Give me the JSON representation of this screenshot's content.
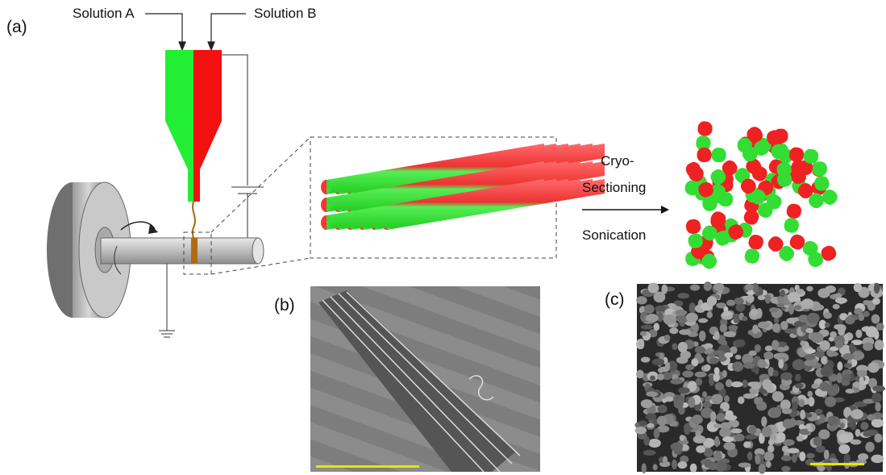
{
  "panel_labels": {
    "a": "(a)",
    "b": "(b)",
    "c": "(c)"
  },
  "inputs": [
    "Solution A",
    "Solution B"
  ],
  "process": {
    "steps": [
      "Cryo-",
      "Sectioning",
      "Sonication"
    ]
  }
}
